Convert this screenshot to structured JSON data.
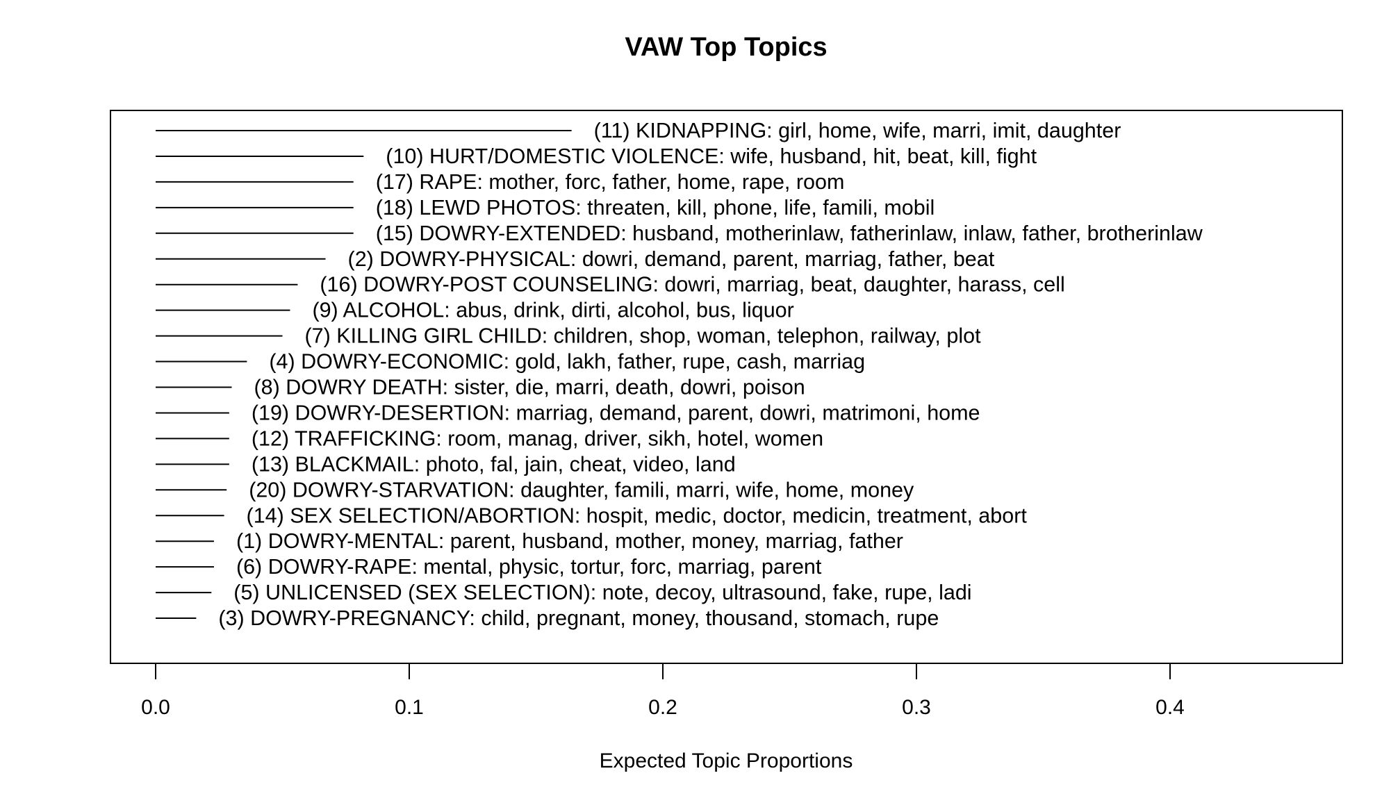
{
  "chart_data": {
    "type": "bar",
    "orientation": "horizontal",
    "title": "VAW Top Topics",
    "xlabel": "Expected Topic Proportions",
    "ylabel": "",
    "xlim": [
      0.0,
      0.4
    ],
    "xticks": [
      "0.0",
      "0.1",
      "0.2",
      "0.3",
      "0.4"
    ],
    "grid": false,
    "legend": "none",
    "color": "#000000",
    "categories": [
      "(11) KIDNAPPING: girl, home, wife, marri, imit, daughter",
      "(10) HURT/DOMESTIC VIOLENCE: wife, husband, hit, beat, kill, fight",
      "(17) RAPE: mother, forc, father, home, rape, room",
      "(18) LEWD PHOTOS: threaten, kill, phone, life, famili, mobil",
      "(15) DOWRY-EXTENDED: husband, motherinlaw, fatherinlaw, inlaw, father, brotherinlaw",
      "(2) DOWRY-PHYSICAL: dowri, demand, parent, marriag, father, beat",
      "(16) DOWRY-POST COUNSELING: dowri, marriag, beat, daughter, harass, cell",
      "(9) ALCOHOL: abus, drink, dirti, alcohol, bus, liquor",
      "(7) KILLING GIRL CHILD: children, shop, woman, telephon, railway, plot",
      "(4) DOWRY-ECONOMIC: gold, lakh, father, rupe, cash, marriag",
      "(8) DOWRY DEATH: sister, die, marri, death, dowri, poison",
      "(19) DOWRY-DESERTION: marriag, demand, parent, dowri, matrimoni, home",
      "(12) TRAFFICKING: room, manag, driver, sikh, hotel, women",
      "(13) BLACKMAIL: photo, fal, jain, cheat, video, land",
      "(20) DOWRY-STARVATION: daughter, famili, marri, wife, home, money",
      "(14) SEX SELECTION/ABORTION: hospit, medic, doctor, medicin, treatment, abort",
      "(1) DOWRY-MENTAL: parent, husband, mother, money, marriag, father",
      "(6) DOWRY-RAPE: mental, physic, tortur, forc, marriag, parent",
      "(5) UNLICENSED (SEX SELECTION): note, decoy, ultrasound, fake, rupe, ladi",
      "(3) DOWRY-PREGNANCY: child, pregnant, money, thousand, stomach, rupe"
    ],
    "values": [
      0.164,
      0.082,
      0.078,
      0.078,
      0.078,
      0.067,
      0.056,
      0.053,
      0.05,
      0.036,
      0.03,
      0.029,
      0.029,
      0.029,
      0.028,
      0.027,
      0.023,
      0.023,
      0.022,
      0.016
    ]
  }
}
